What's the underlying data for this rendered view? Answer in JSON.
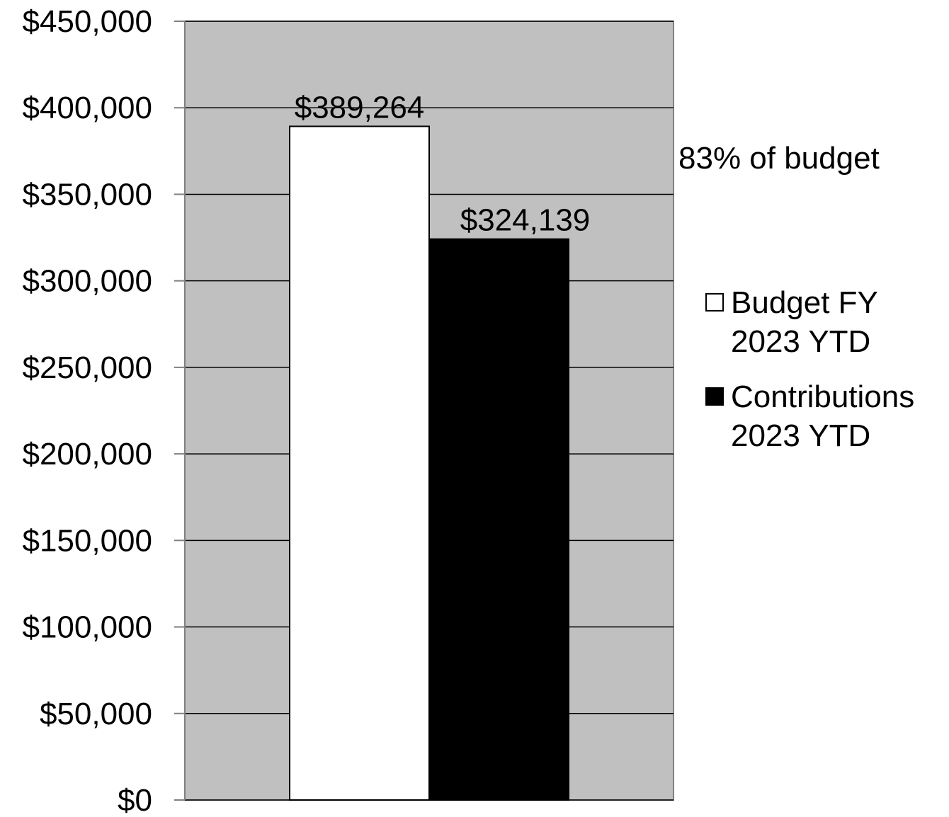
{
  "chart_data": {
    "type": "bar",
    "categories": [
      ""
    ],
    "series": [
      {
        "name": "Budget FY 2023 YTD",
        "name_lines": [
          "Budget FY",
          "2023 YTD"
        ],
        "values": [
          389264
        ],
        "value_label": "$389,264",
        "color": "#ffffff"
      },
      {
        "name": "Contributions 2023 YTD",
        "name_lines": [
          "Contributions",
          "2023 YTD"
        ],
        "values": [
          324139
        ],
        "value_label": "$324,139",
        "color": "#000000"
      }
    ],
    "ylim": [
      0,
      450000
    ],
    "ytick_values": [
      0,
      50000,
      100000,
      150000,
      200000,
      250000,
      300000,
      350000,
      400000,
      450000
    ],
    "ytick_labels": [
      "$0",
      "$50,000",
      "$100,000",
      "$150,000",
      "$200,000",
      "$250,000",
      "$300,000",
      "$350,000",
      "$400,000",
      "$450,000"
    ],
    "annotation": "83% of budget",
    "grid": true,
    "plot_background": "#c0c0c0",
    "legend_position": "right",
    "title": "",
    "xlabel": "",
    "ylabel": ""
  }
}
